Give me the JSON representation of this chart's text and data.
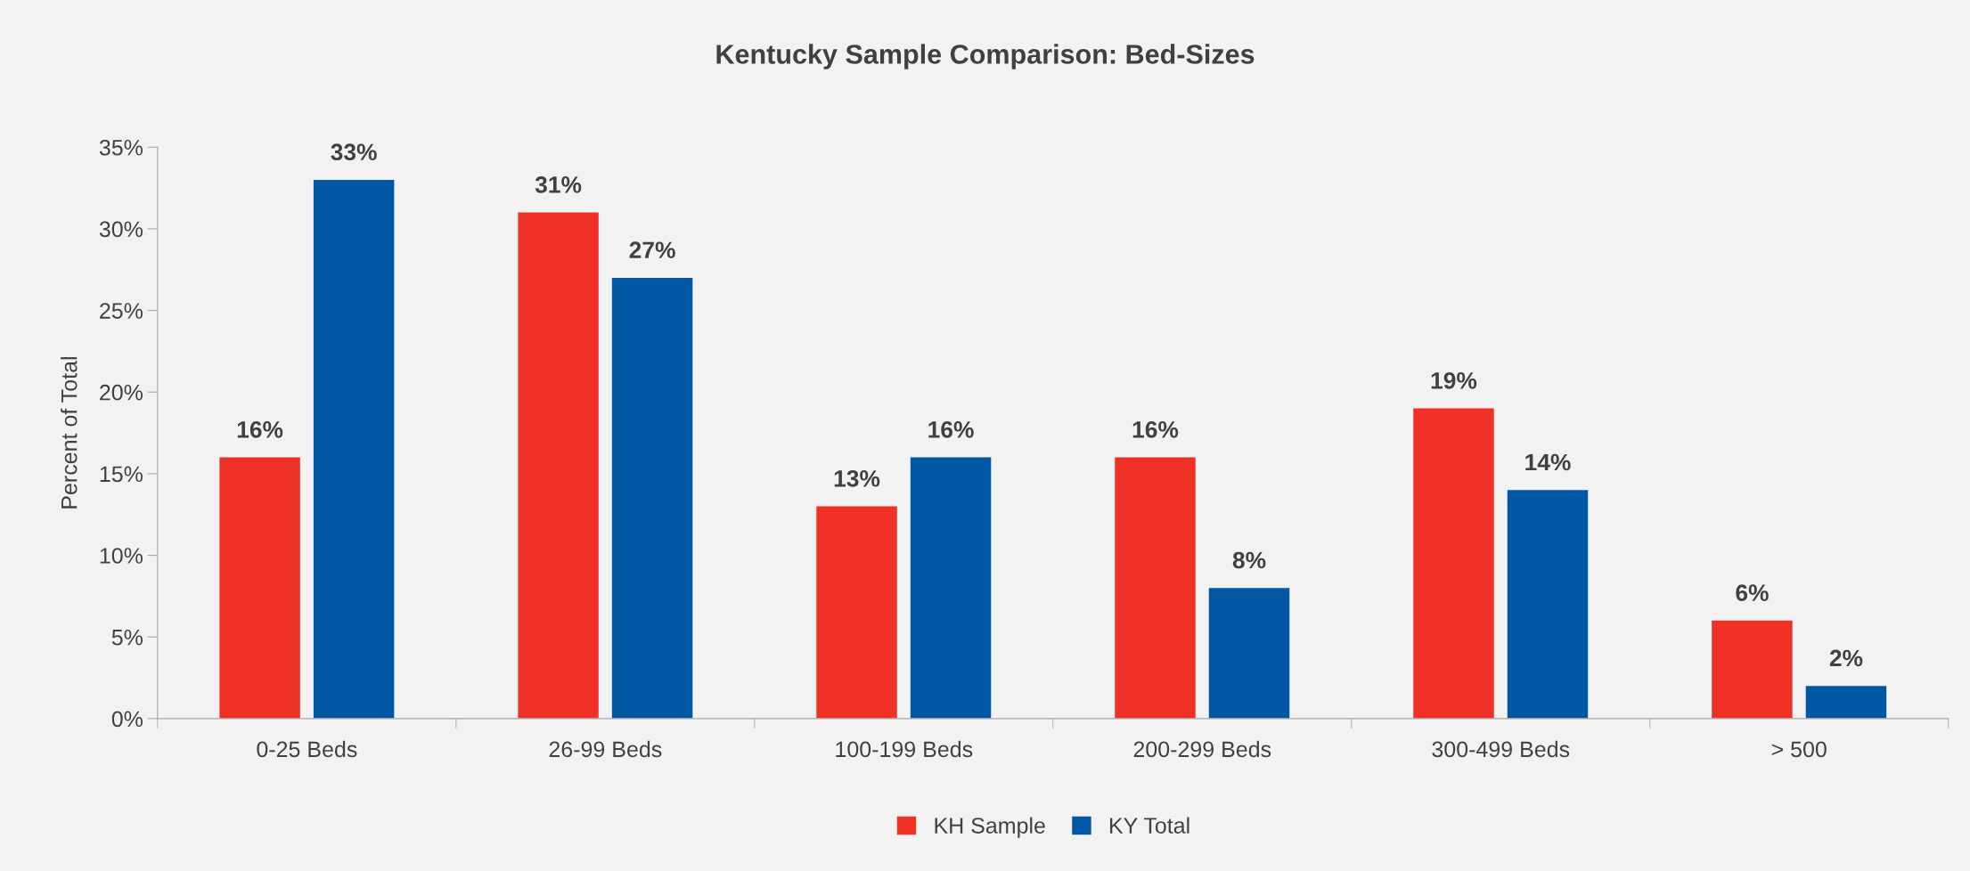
{
  "chart_data": {
    "type": "bar",
    "title": "Kentucky Sample Comparison: Bed-Sizes",
    "ylabel": "Percent of Total",
    "categories": [
      "0-25 Beds",
      "26-99 Beds",
      "100-199 Beds",
      "200-299 Beds",
      "300-499 Beds",
      "> 500"
    ],
    "series": [
      {
        "name": "KH Sample",
        "color": "#ee3124",
        "values": [
          16,
          31,
          13,
          16,
          19,
          6
        ],
        "value_labels": [
          "16%",
          "31%",
          "13%",
          "16%",
          "19%",
          "6%"
        ]
      },
      {
        "name": "KY Total",
        "color": "#0057a4",
        "values": [
          33,
          27,
          16,
          8,
          14,
          2
        ],
        "value_labels": [
          "33%",
          "27%",
          "16%",
          "8%",
          "14%",
          "2%"
        ]
      }
    ],
    "ylim": [
      0,
      35
    ],
    "yticks": [
      {
        "value": 0,
        "label": "0%"
      },
      {
        "value": 5,
        "label": "5%"
      },
      {
        "value": 10,
        "label": "10%"
      },
      {
        "value": 15,
        "label": "15%"
      },
      {
        "value": 20,
        "label": "20%"
      },
      {
        "value": 25,
        "label": "25%"
      },
      {
        "value": 30,
        "label": "30%"
      },
      {
        "value": 35,
        "label": "35%"
      }
    ],
    "grid": false,
    "legend": "bottom"
  }
}
